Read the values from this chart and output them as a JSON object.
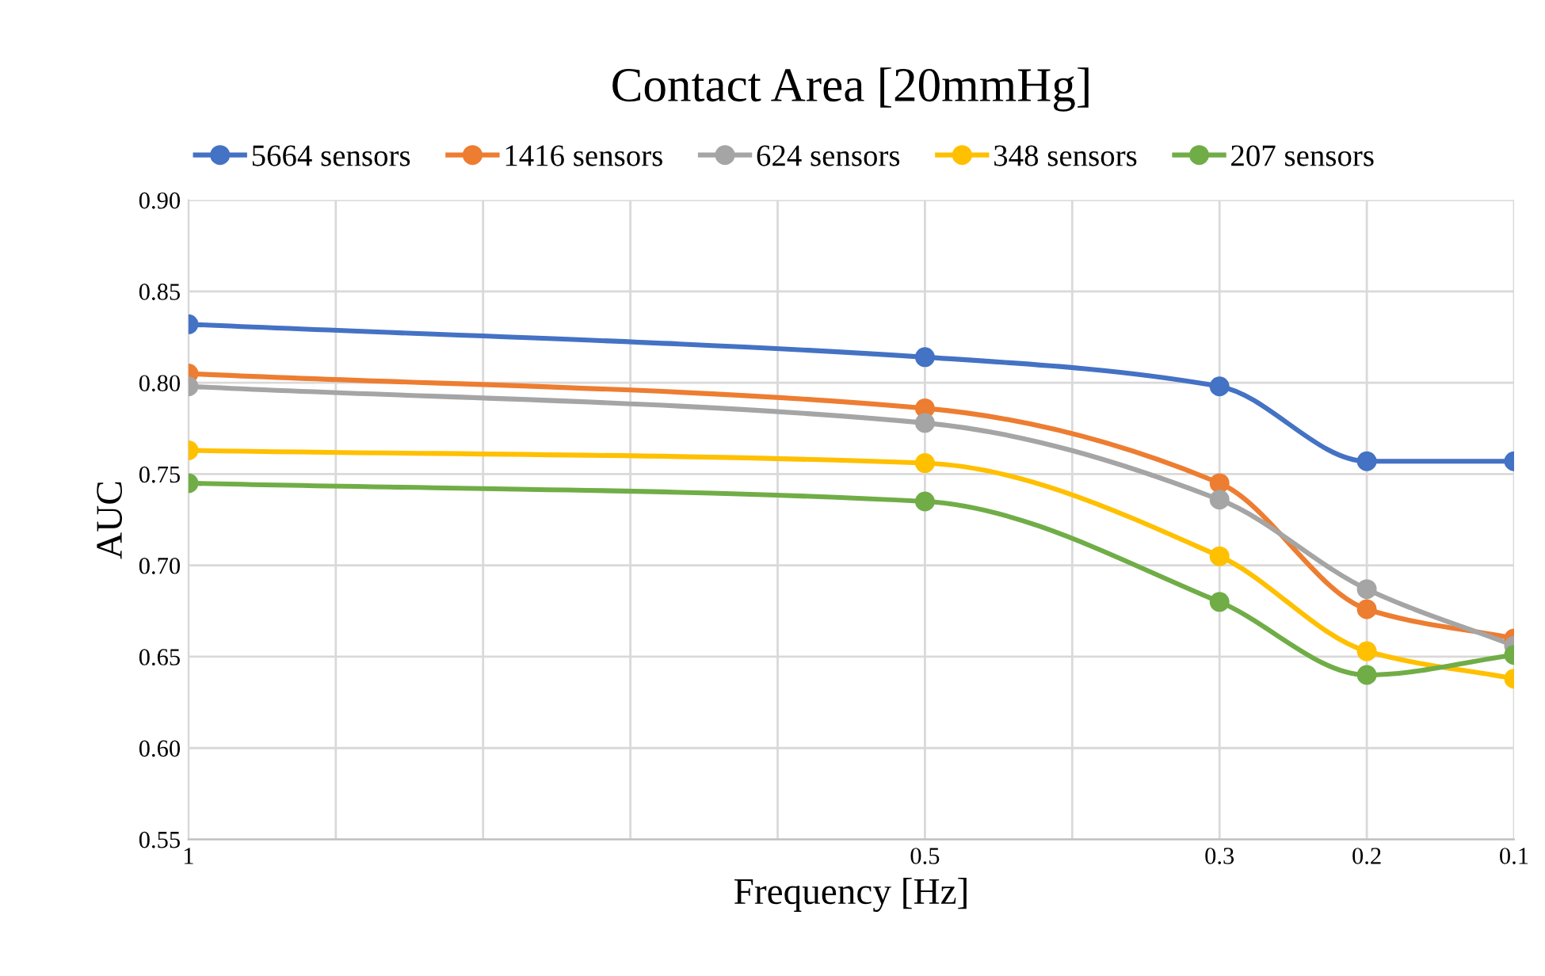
{
  "chart_data": {
    "type": "line",
    "title": "Contact Area [20mmHg]",
    "xlabel": "Frequency [Hz]",
    "ylabel": "AUC",
    "x": [
      1,
      0.5,
      0.3,
      0.2,
      0.1
    ],
    "series": [
      {
        "name": "5664 sensors",
        "color": "#4472c4",
        "values": [
          0.832,
          0.814,
          0.798,
          0.757,
          0.757
        ]
      },
      {
        "name": "1416 sensors",
        "color": "#ed7d31",
        "values": [
          0.805,
          0.786,
          0.745,
          0.676,
          0.66
        ]
      },
      {
        "name": "624 sensors",
        "color": "#a5a5a5",
        "values": [
          0.798,
          0.778,
          0.736,
          0.687,
          0.656
        ]
      },
      {
        "name": "348 sensors",
        "color": "#ffc000",
        "values": [
          0.763,
          0.756,
          0.705,
          0.653,
          0.638
        ]
      },
      {
        "name": "207 sensors",
        "color": "#70ad47",
        "values": [
          0.745,
          0.735,
          0.68,
          0.64,
          0.651
        ]
      }
    ],
    "xlim": [
      1,
      0.1
    ],
    "xticks": [
      1,
      {
        "value": 0.9,
        "label": null
      },
      {
        "value": 0.8,
        "label": null
      },
      {
        "value": 0.7,
        "label": null
      },
      {
        "value": 0.6,
        "label": null
      },
      0.5,
      {
        "value": 0.4,
        "label": null
      },
      0.3,
      0.2,
      0.1
    ],
    "ylim": [
      0.55,
      0.9
    ],
    "yticks": [
      {
        "value": 0.55,
        "label": "0.55"
      },
      {
        "value": 0.6,
        "label": "0.60"
      },
      {
        "value": 0.65,
        "label": "0.65"
      },
      {
        "value": 0.7,
        "label": "0.70"
      },
      {
        "value": 0.75,
        "label": "0.75"
      },
      {
        "value": 0.8,
        "label": "0.80"
      },
      {
        "value": 0.85,
        "label": "0.85"
      },
      {
        "value": 0.9,
        "label": "0.90"
      }
    ],
    "grid": true,
    "legend": "top",
    "marker": "circle",
    "line_style": "solid"
  }
}
